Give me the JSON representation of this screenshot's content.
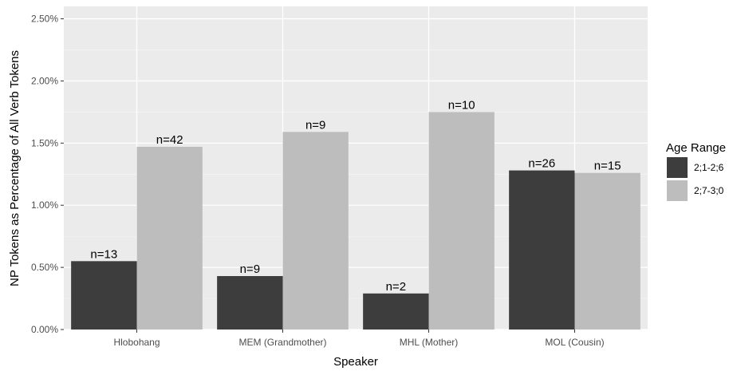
{
  "chart_data": {
    "type": "bar",
    "title": "",
    "xlabel": "Speaker",
    "ylabel": "NP Tokens as Percentage of All Verb Tokens",
    "categories": [
      "Hlobohang",
      "MEM (Grandmother)",
      "MHL (Mother)",
      "MOL (Cousin)"
    ],
    "series": [
      {
        "name": "2;1-2;6",
        "color": "#3d3d3d",
        "values": [
          0.55,
          0.43,
          0.29,
          1.28
        ],
        "labels": [
          "n=13",
          "n=9",
          "n=2",
          "n=26"
        ]
      },
      {
        "name": "2;7-3;0",
        "color": "#bdbdbd",
        "values": [
          1.47,
          1.59,
          1.75,
          1.26
        ],
        "labels": [
          "n=42",
          "n=9",
          "n=10",
          "n=15"
        ]
      }
    ],
    "ylim": [
      0,
      2.6
    ],
    "yticks": [
      0,
      0.5,
      1.0,
      1.5,
      2.0,
      2.5
    ],
    "ytick_labels": [
      "0.00%",
      "0.50%",
      "1.00%",
      "1.50%",
      "2.00%",
      "2.50%"
    ],
    "grid": true,
    "panel_color": "#ebebeb",
    "legend": {
      "title": "Age Range",
      "position": "right"
    }
  }
}
